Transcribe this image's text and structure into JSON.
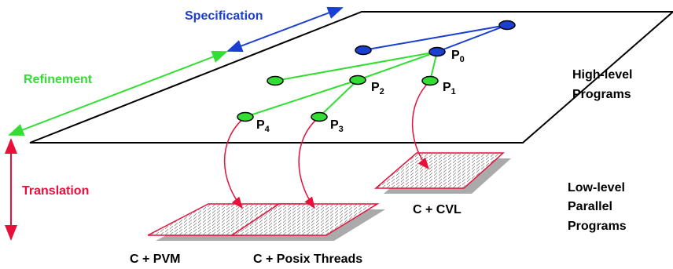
{
  "specification": "Specification",
  "refinement": "Refinement",
  "translation": "Translation",
  "high_level": [
    "High-level",
    "Programs"
  ],
  "low_level": [
    "Low-level",
    "Parallel",
    "Programs"
  ],
  "platforms": [
    "C + PVM",
    "C + Posix Threads",
    "C + CVL"
  ],
  "nodes": [
    {
      "label": "P",
      "sub": "0"
    },
    {
      "label": "P",
      "sub": "1"
    },
    {
      "label": "P",
      "sub": "2"
    },
    {
      "label": "P",
      "sub": "3"
    },
    {
      "label": "P",
      "sub": "4"
    }
  ]
}
